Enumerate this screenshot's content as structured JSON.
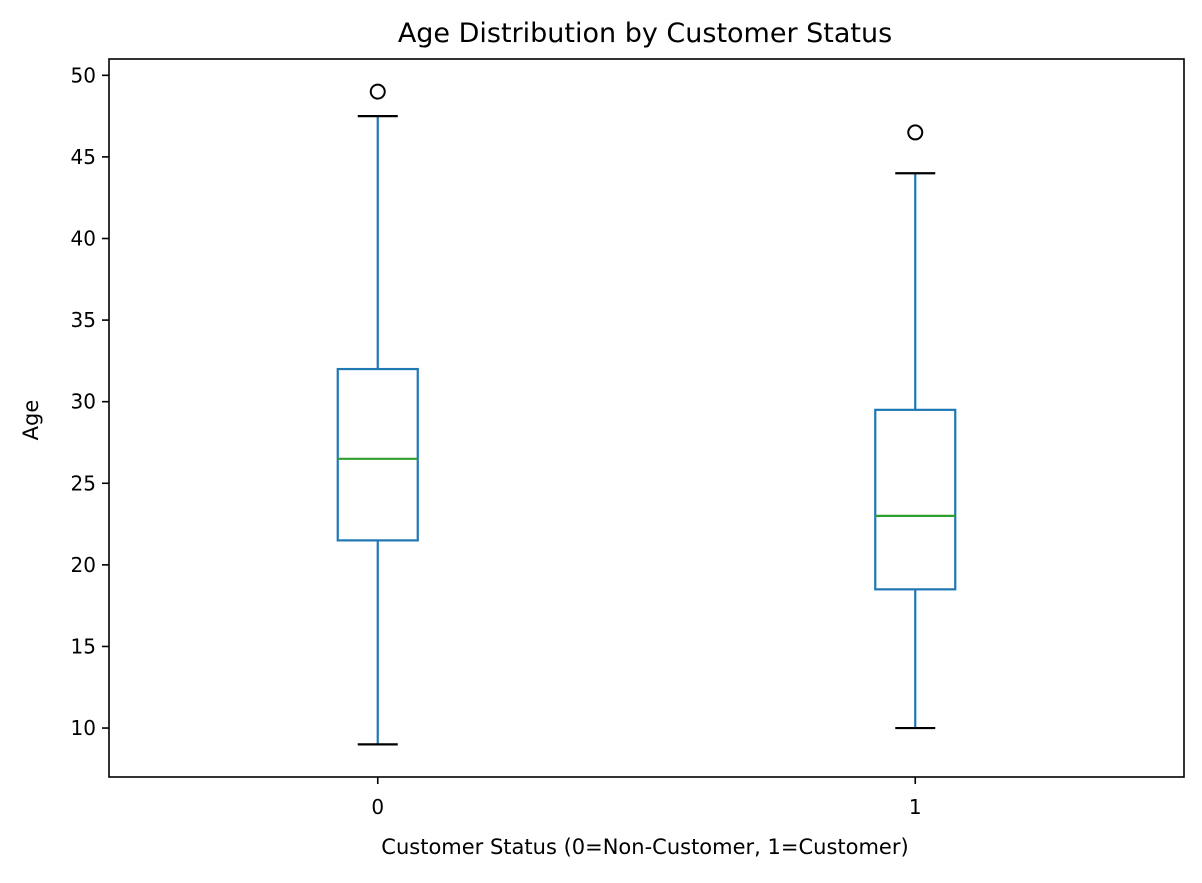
{
  "chart_data": {
    "type": "box",
    "title": "Age Distribution by Customer Status",
    "xlabel": "Customer Status (0=Non-Customer, 1=Customer)",
    "ylabel": "Age",
    "categories": [
      "0",
      "1"
    ],
    "ylim": [
      7,
      51
    ],
    "yticks": [
      10,
      15,
      20,
      25,
      30,
      35,
      40,
      45,
      50
    ],
    "grid": false,
    "legend": "none",
    "boxes": [
      {
        "category": "0",
        "whisker_low": 9,
        "q1": 21.5,
        "median": 26.5,
        "q3": 32,
        "whisker_high": 47.5,
        "outliers": [
          49
        ]
      },
      {
        "category": "1",
        "whisker_low": 10,
        "q1": 18.5,
        "median": 23,
        "q3": 29.5,
        "whisker_high": 44,
        "outliers": [
          46.5
        ]
      }
    ],
    "colors": {
      "box": "#1f77b4",
      "median": "#2ca02c",
      "cap": "#000000",
      "outlier": "#000000",
      "axes": "#000000"
    }
  }
}
